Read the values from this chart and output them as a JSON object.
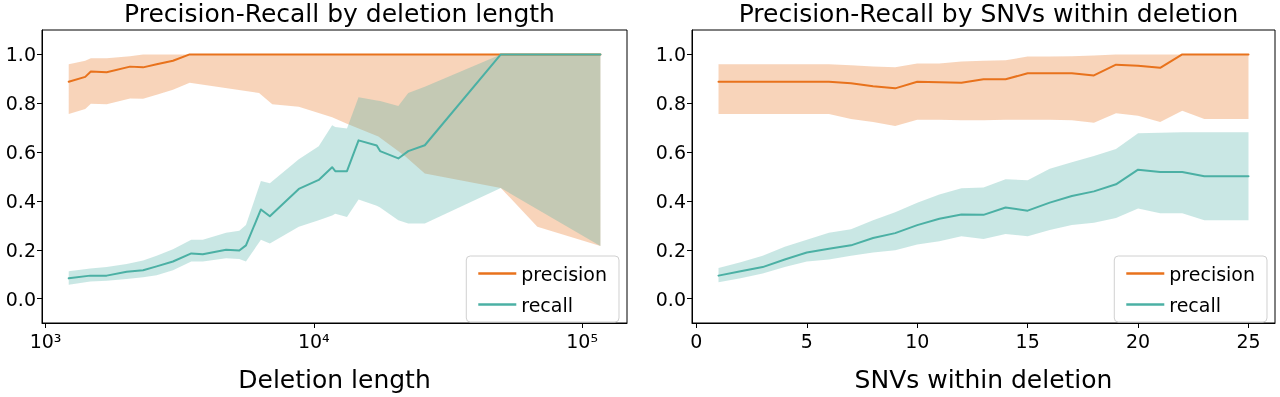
{
  "chart_data": [
    {
      "type": "line",
      "title": "Precision-Recall by deletion length",
      "xlabel": "Deletion length",
      "log": "x",
      "legend": "bottom right",
      "grid": false,
      "marker": "none",
      "line_style": "solid",
      "xlim": [
        970,
        147000
      ],
      "xticks": [
        {
          "value": 1000,
          "label": "10³"
        },
        {
          "value": 10000,
          "label": "10⁴"
        },
        {
          "value": 100000,
          "label": "10⁵"
        }
      ],
      "ylim": [
        -0.1,
        1.1
      ],
      "yticks": [
        {
          "value": 0,
          "label": "0.0"
        },
        {
          "value": 0.2,
          "label": "0.2"
        },
        {
          "value": 0.4,
          "label": "0.4"
        },
        {
          "value": 0.6,
          "label": "0.6"
        },
        {
          "value": 0.8,
          "label": "0.8"
        },
        {
          "value": 1,
          "label": "1.0"
        }
      ],
      "series": [
        {
          "name": "precision",
          "color": "#e8721c",
          "x": [
            1220,
            1406,
            1475,
            1690,
            2065,
            2310,
            2595,
            2985,
            3445,
            6250,
            7000,
            8790,
            11700,
            13290,
            17400,
            21850,
            25920,
            49770,
            68100,
            117000
          ],
          "values": [
            0.888,
            0.908,
            0.93,
            0.927,
            0.95,
            0.947,
            0.96,
            0.974,
            1,
            1,
            1,
            1,
            1,
            1,
            1,
            1,
            1,
            1,
            1,
            1
          ],
          "lower": [
            0.756,
            0.776,
            0.798,
            0.796,
            0.819,
            0.818,
            0.835,
            0.855,
            0.884,
            0.842,
            0.796,
            0.786,
            0.743,
            0.716,
            0.664,
            0.584,
            0.512,
            0.453,
            0.294,
            0.215
          ],
          "upper": [
            0.96,
            0.974,
            0.984,
            0.984,
            0.993,
            1,
            1,
            1,
            1,
            1,
            1,
            1,
            1,
            1,
            1,
            1,
            1,
            1,
            1,
            1
          ]
        },
        {
          "name": "recall",
          "color": "#4bb0a4",
          "x": [
            1220,
            1468,
            1690,
            2006,
            2310,
            2595,
            2985,
            3493,
            3857,
            4710,
            5275,
            5585,
            6350,
            6855,
            8790,
            10430,
            11700,
            12020,
            13290,
            14680,
            17160,
            17660,
            20650,
            22490,
            25920,
            49770,
            117000
          ],
          "values": [
            0.083,
            0.094,
            0.094,
            0.11,
            0.116,
            0.132,
            0.152,
            0.185,
            0.182,
            0.2,
            0.197,
            0.218,
            0.365,
            0.337,
            0.449,
            0.486,
            0.538,
            0.522,
            0.522,
            0.648,
            0.627,
            0.604,
            0.574,
            0.604,
            0.628,
            1,
            1
          ],
          "lower": [
            0.057,
            0.07,
            0.073,
            0.08,
            0.087,
            0.096,
            0.116,
            0.152,
            0.152,
            0.165,
            0.162,
            0.152,
            0.241,
            0.226,
            0.294,
            0.321,
            0.34,
            0.347,
            0.334,
            0.406,
            0.38,
            0.373,
            0.321,
            0.307,
            0.307,
            0.453,
            0.215
          ],
          "upper": [
            0.112,
            0.123,
            0.129,
            0.142,
            0.156,
            0.175,
            0.202,
            0.241,
            0.241,
            0.27,
            0.278,
            0.301,
            0.482,
            0.472,
            0.571,
            0.624,
            0.71,
            0.703,
            0.697,
            0.825,
            0.811,
            0.809,
            0.789,
            0.842,
            0.868,
            1,
            1
          ]
        }
      ]
    },
    {
      "type": "line",
      "title": "Precision-Recall by SNVs within deletion",
      "xlabel": "SNVs within deletion",
      "legend": "bottom right",
      "grid": false,
      "marker": "none",
      "line_style": "solid",
      "xlim": [
        -0.2,
        26.2
      ],
      "xticks": [
        0,
        5,
        10,
        15,
        20,
        25
      ],
      "ylim": [
        -0.1,
        1.1
      ],
      "yticks": [
        {
          "value": 0,
          "label": "0.0"
        },
        {
          "value": 0.2,
          "label": "0.2"
        },
        {
          "value": 0.4,
          "label": "0.4"
        },
        {
          "value": 0.6,
          "label": "0.6"
        },
        {
          "value": 0.8,
          "label": "0.8"
        },
        {
          "value": 1,
          "label": "1.0"
        }
      ],
      "x": [
        1,
        2,
        3,
        4,
        5,
        6,
        7,
        8,
        9,
        10,
        11,
        12,
        13,
        14,
        15,
        16,
        17,
        18,
        19,
        20,
        21,
        22,
        23,
        24,
        25
      ],
      "series": [
        {
          "name": "precision",
          "color": "#e8721c",
          "values": [
            0.888,
            0.888,
            0.888,
            0.888,
            0.888,
            0.888,
            0.882,
            0.87,
            0.861,
            0.888,
            0.886,
            0.884,
            0.898,
            0.898,
            0.923,
            0.923,
            0.923,
            0.914,
            0.958,
            0.954,
            0.945,
            1,
            1,
            1,
            1
          ],
          "lower": [
            0.756,
            0.756,
            0.756,
            0.756,
            0.756,
            0.756,
            0.736,
            0.723,
            0.707,
            0.732,
            0.732,
            0.73,
            0.73,
            0.732,
            0.732,
            0.732,
            0.73,
            0.72,
            0.759,
            0.749,
            0.723,
            0.769,
            0.736,
            0.736,
            0.736
          ],
          "upper": [
            0.96,
            0.96,
            0.96,
            0.96,
            0.96,
            0.96,
            0.956,
            0.951,
            0.947,
            0.963,
            0.963,
            0.971,
            0.974,
            0.976,
            0.991,
            0.991,
            0.993,
            0.996,
            1,
            1,
            1,
            1,
            1,
            1,
            1
          ]
        },
        {
          "name": "recall",
          "color": "#4bb0a4",
          "values": [
            0.094,
            0.112,
            0.129,
            0.16,
            0.189,
            0.204,
            0.218,
            0.248,
            0.268,
            0.301,
            0.327,
            0.344,
            0.343,
            0.373,
            0.36,
            0.393,
            0.42,
            0.439,
            0.468,
            0.528,
            0.518,
            0.518,
            0.501,
            0.501,
            0.501
          ],
          "lower": [
            0.067,
            0.083,
            0.103,
            0.129,
            0.152,
            0.16,
            0.175,
            0.189,
            0.198,
            0.222,
            0.235,
            0.255,
            0.244,
            0.265,
            0.255,
            0.281,
            0.301,
            0.311,
            0.33,
            0.369,
            0.35,
            0.35,
            0.321,
            0.321,
            0.321
          ],
          "upper": [
            0.125,
            0.149,
            0.175,
            0.212,
            0.241,
            0.27,
            0.284,
            0.321,
            0.354,
            0.393,
            0.426,
            0.452,
            0.455,
            0.489,
            0.485,
            0.532,
            0.558,
            0.584,
            0.613,
            0.677,
            0.679,
            0.681,
            0.681,
            0.681,
            0.681
          ]
        }
      ]
    }
  ]
}
